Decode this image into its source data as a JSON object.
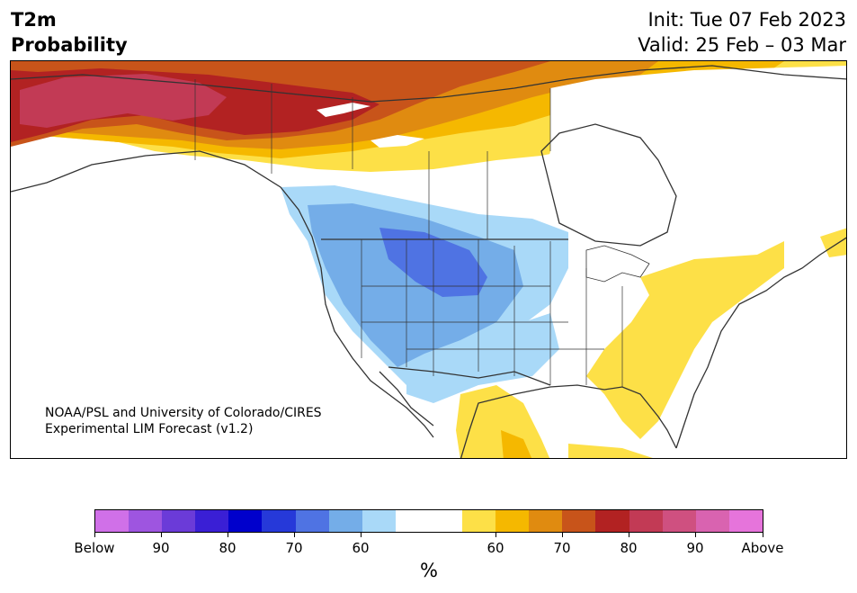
{
  "header": {
    "variable": "T2m",
    "product": "Probability",
    "init": "Init: Tue 07 Feb 2023",
    "valid": "Valid: 25 Feb – 03 Mar"
  },
  "map": {
    "credit_line1": "NOAA/PSL and University of Colorado/CIRES",
    "credit_line2": "Experimental LIM Forecast (v1.2)",
    "region": "North America",
    "dominant_signals": {
      "above_normal_strong": "Alaska and northwestern Canada",
      "above_normal_moderate": "southern Canada north of the border, US East Coast and Southeast, northern Mexico",
      "below_normal": "western and northern-central United States"
    }
  },
  "colorbar": {
    "unit_label": "%",
    "tick_labels": [
      "Below",
      "90",
      "80",
      "70",
      "60",
      "60",
      "70",
      "80",
      "90",
      "Above"
    ],
    "colors": [
      "#d070e8",
      "#9e55e0",
      "#6b3bd8",
      "#3a1fd5",
      "#0000cc",
      "#2639d9",
      "#4f73e3",
      "#74ade8",
      "#a9d9f8",
      "#ffffff",
      "#ffffff",
      "#fde047",
      "#f5b800",
      "#e08b10",
      "#c8541a",
      "#b22222",
      "#c23a55",
      "#cf5080",
      "#d963b0",
      "#e674db"
    ],
    "colors_meaning": "below-normal probability (purple/blue) to above-normal probability (red/pink), white = near normal"
  }
}
